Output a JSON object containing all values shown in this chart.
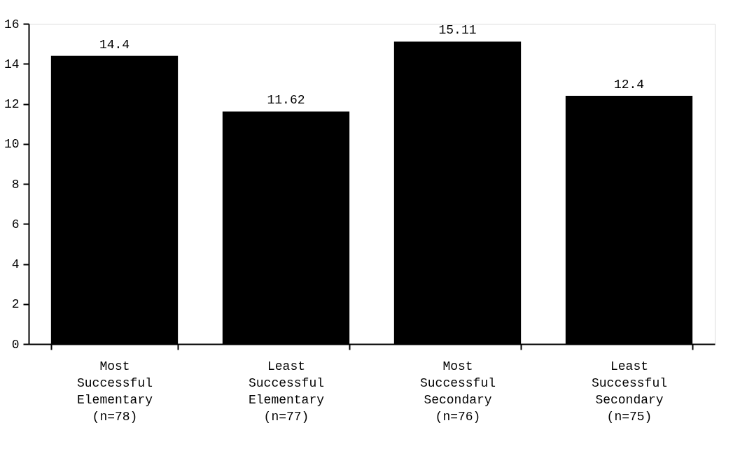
{
  "chart_data": {
    "type": "bar",
    "categories": [
      "Most\nSuccessful\nElementary\n(n=78)",
      "Least\nSuccessful\nElementary\n(n=77)",
      "Most\nSuccessful\nSecondary\n(n=76)",
      "Least\nSuccessful\nSecondary\n(n=75)"
    ],
    "values": [
      14.4,
      11.62,
      15.11,
      12.4
    ],
    "color": "#000000",
    "ylim": [
      0,
      16
    ],
    "yticks": [
      0,
      2,
      4,
      6,
      8,
      10,
      12,
      14,
      16
    ],
    "grid": false,
    "data_labels": true
  }
}
